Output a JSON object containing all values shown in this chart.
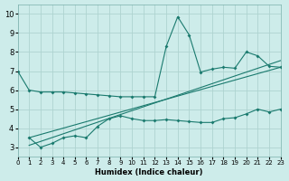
{
  "xlabel": "Humidex (Indice chaleur)",
  "bg_color": "#cdecea",
  "grid_color": "#aed4d0",
  "line_color": "#1a7a6e",
  "xmin": 0,
  "xmax": 23,
  "ymin": 2.5,
  "ymax": 10.5,
  "yticks": [
    3,
    4,
    5,
    6,
    7,
    8,
    9,
    10
  ],
  "xticks": [
    0,
    1,
    2,
    3,
    4,
    5,
    6,
    7,
    8,
    9,
    10,
    11,
    12,
    13,
    14,
    15,
    16,
    17,
    18,
    19,
    20,
    21,
    22,
    23
  ],
  "line1_x": [
    0,
    1,
    2,
    3,
    4,
    5,
    6,
    7,
    8,
    9,
    10,
    11,
    12,
    13,
    14,
    15,
    16,
    17,
    18,
    19,
    20,
    21,
    22,
    23
  ],
  "line1_y": [
    7.0,
    6.0,
    5.9,
    5.9,
    5.9,
    5.85,
    5.8,
    5.75,
    5.7,
    5.65,
    5.65,
    5.65,
    5.65,
    8.3,
    9.85,
    8.9,
    6.95,
    7.1,
    7.2,
    7.15,
    8.0,
    7.8,
    7.25,
    7.2
  ],
  "line2_x": [
    1,
    2,
    3,
    4,
    5,
    6,
    7,
    8,
    9,
    10,
    11,
    12,
    13,
    14,
    15,
    16,
    17,
    18,
    19,
    20,
    21,
    22,
    23
  ],
  "line2_y": [
    3.5,
    3.0,
    3.2,
    3.5,
    3.6,
    3.5,
    4.1,
    4.5,
    4.65,
    4.5,
    4.4,
    4.4,
    4.45,
    4.4,
    4.35,
    4.3,
    4.3,
    4.5,
    4.55,
    4.75,
    5.0,
    4.85,
    5.0
  ],
  "trend1_x": [
    1,
    23
  ],
  "trend1_y": [
    3.5,
    7.2
  ],
  "trend2_x": [
    1,
    23
  ],
  "trend2_y": [
    3.1,
    7.55
  ]
}
